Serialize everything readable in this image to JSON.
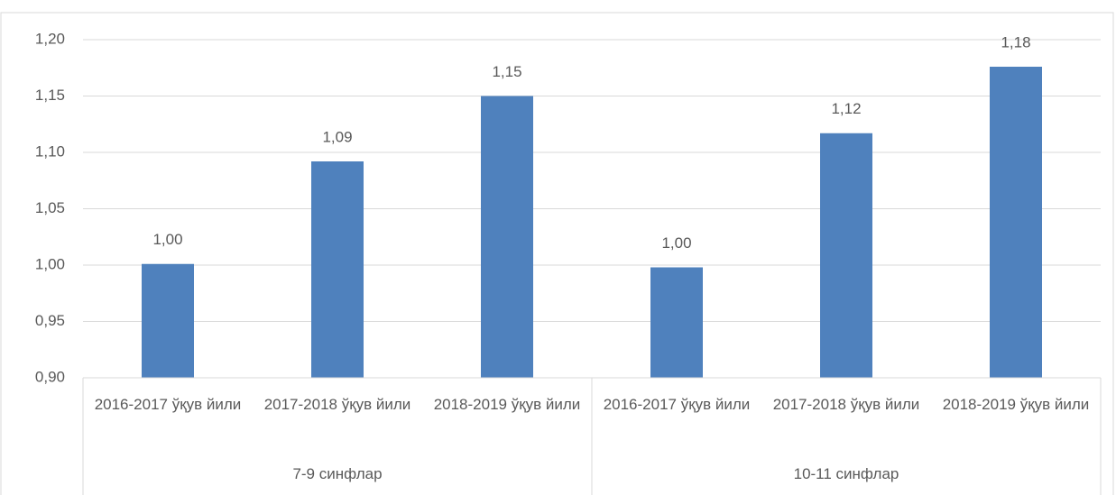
{
  "chart_data": {
    "type": "bar",
    "categories": [
      "2016-2017 ўқув йили",
      "2017-2018 ўқув йили",
      "2018-2019 ўқув йили",
      "2016-2017 ўқув йили",
      "2017-2018 ўқув йили",
      "2018-2019 ўқув йили"
    ],
    "category_groups": [
      "7-9 синфлар",
      "10-11 синфлар"
    ],
    "values": [
      1.001,
      1.092,
      1.15,
      0.998,
      1.117,
      1.176
    ],
    "value_labels": [
      "1,00",
      "1,09",
      "1,15",
      "1,00",
      "1,12",
      "1,18"
    ],
    "color": "#4f81bd",
    "ylim": [
      0.9,
      1.2
    ],
    "yticks": [
      {
        "value": 0.9,
        "label": "0,90"
      },
      {
        "value": 0.95,
        "label": "0,95"
      },
      {
        "value": 1.0,
        "label": "1,00"
      },
      {
        "value": 1.05,
        "label": "1,05"
      },
      {
        "value": 1.1,
        "label": "1,10"
      },
      {
        "value": 1.15,
        "label": "1,15"
      },
      {
        "value": 1.2,
        "label": "1,20"
      }
    ],
    "grid": true
  }
}
